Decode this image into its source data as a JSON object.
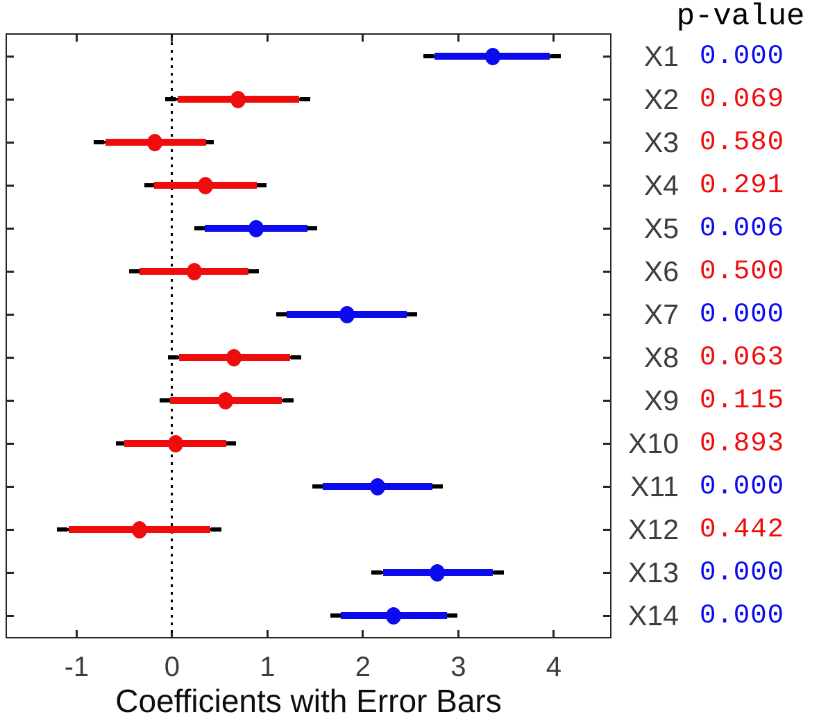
{
  "chart_data": {
    "type": "errorbar",
    "title": "",
    "xlabel": "Coefficients with Error Bars",
    "p_value_header": "p-value",
    "x_ticks": [
      "-1",
      "0",
      "1",
      "2",
      "3",
      "4"
    ],
    "x_tick_values": [
      -1,
      0,
      1,
      2,
      3,
      4
    ],
    "xlim": [
      -1.73,
      4.59
    ],
    "reference_line_x": 0,
    "grid": false,
    "legend_position": "none",
    "rows": [
      {
        "label": "X1",
        "estimate": 3.36,
        "inner_ci": [
          2.75,
          3.96
        ],
        "outer_ci": [
          2.63,
          4.07
        ],
        "p_value": "0.000",
        "significant": true
      },
      {
        "label": "X2",
        "estimate": 0.69,
        "inner_ci": [
          0.06,
          1.33
        ],
        "outer_ci": [
          -0.07,
          1.45
        ],
        "p_value": "0.069",
        "significant": false
      },
      {
        "label": "X3",
        "estimate": -0.18,
        "inner_ci": [
          -0.7,
          0.36
        ],
        "outer_ci": [
          -0.82,
          0.44
        ],
        "p_value": "0.580",
        "significant": false
      },
      {
        "label": "X4",
        "estimate": 0.35,
        "inner_ci": [
          -0.19,
          0.89
        ],
        "outer_ci": [
          -0.29,
          0.99
        ],
        "p_value": "0.291",
        "significant": false
      },
      {
        "label": "X5",
        "estimate": 0.88,
        "inner_ci": [
          0.34,
          1.42
        ],
        "outer_ci": [
          0.23,
          1.52
        ],
        "p_value": "0.006",
        "significant": true
      },
      {
        "label": "X6",
        "estimate": 0.23,
        "inner_ci": [
          -0.34,
          0.8
        ],
        "outer_ci": [
          -0.45,
          0.91
        ],
        "p_value": "0.500",
        "significant": false
      },
      {
        "label": "X7",
        "estimate": 1.83,
        "inner_ci": [
          1.2,
          2.46
        ],
        "outer_ci": [
          1.09,
          2.57
        ],
        "p_value": "0.000",
        "significant": true
      },
      {
        "label": "X8",
        "estimate": 0.65,
        "inner_ci": [
          0.07,
          1.24
        ],
        "outer_ci": [
          -0.04,
          1.35
        ],
        "p_value": "0.063",
        "significant": false
      },
      {
        "label": "X9",
        "estimate": 0.56,
        "inner_ci": [
          -0.02,
          1.15
        ],
        "outer_ci": [
          -0.13,
          1.27
        ],
        "p_value": "0.115",
        "significant": false
      },
      {
        "label": "X10",
        "estimate": 0.04,
        "inner_ci": [
          -0.5,
          0.57
        ],
        "outer_ci": [
          -0.59,
          0.67
        ],
        "p_value": "0.893",
        "significant": false
      },
      {
        "label": "X11",
        "estimate": 2.15,
        "inner_ci": [
          1.58,
          2.73
        ],
        "outer_ci": [
          1.47,
          2.84
        ],
        "p_value": "0.000",
        "significant": true
      },
      {
        "label": "X12",
        "estimate": -0.34,
        "inner_ci": [
          -1.08,
          0.4
        ],
        "outer_ci": [
          -1.21,
          0.52
        ],
        "p_value": "0.442",
        "significant": false
      },
      {
        "label": "X13",
        "estimate": 2.78,
        "inner_ci": [
          2.21,
          3.36
        ],
        "outer_ci": [
          2.09,
          3.48
        ],
        "p_value": "0.000",
        "significant": true
      },
      {
        "label": "X14",
        "estimate": 2.32,
        "inner_ci": [
          1.77,
          2.88
        ],
        "outer_ci": [
          1.66,
          2.99
        ],
        "p_value": "0.000",
        "significant": true
      }
    ]
  },
  "colors": {
    "significant": "#0b0bee",
    "nonsignificant": "#ee0c0c",
    "errorbar_line": "#000000",
    "reference_line": "#000000",
    "axis": "#262626",
    "tick_label": "#3c3c3c",
    "row_label": "#3c3c3c",
    "axis_label": "#0d0d0d",
    "header_text": "#000000",
    "background": "#ffffff"
  }
}
